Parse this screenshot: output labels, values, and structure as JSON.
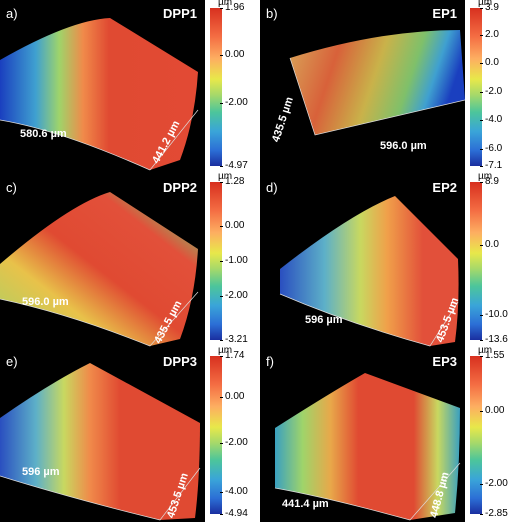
{
  "unit": "µm",
  "panels": [
    {
      "letter": "a)",
      "sample": "DPP1",
      "dim_x": "580.6 µm",
      "dim_y": "441.2 µm",
      "ticks": [
        "1.96",
        "0.00",
        "-2.00",
        "-4.97"
      ],
      "tick_pos": [
        0,
        0.3,
        0.6,
        1
      ]
    },
    {
      "letter": "b)",
      "sample": "EP1",
      "dim_x": "596.0 µm",
      "dim_y": "435.5 µm",
      "ticks": [
        "3.9",
        "2.0",
        "0.0",
        "-2.0",
        "-4.0",
        "-6.0",
        "-7.1"
      ],
      "tick_pos": [
        0,
        0.17,
        0.35,
        0.53,
        0.71,
        0.89,
        1
      ]
    },
    {
      "letter": "c)",
      "sample": "DPP2",
      "dim_x": "596.0 µm",
      "dim_y": "435.5 µm",
      "ticks": [
        "1.28",
        "0.00",
        "-1.00",
        "-2.00",
        "-3.21"
      ],
      "tick_pos": [
        0,
        0.28,
        0.5,
        0.72,
        1
      ]
    },
    {
      "letter": "d)",
      "sample": "EP2",
      "dim_x": "596 µm",
      "dim_y": "453.5 µm",
      "ticks": [
        "8.9",
        "0.0",
        "-10.0",
        "-13.6"
      ],
      "tick_pos": [
        0,
        0.4,
        0.84,
        1
      ]
    },
    {
      "letter": "e)",
      "sample": "DPP3",
      "dim_x": "596 µm",
      "dim_y": "453.5 µm",
      "ticks": [
        "1.74",
        "0.00",
        "-2.00",
        "-4.00",
        "-4.94"
      ],
      "tick_pos": [
        0,
        0.26,
        0.55,
        0.86,
        1
      ]
    },
    {
      "letter": "f)",
      "sample": "EP3",
      "dim_x": "441.4 µm",
      "dim_y": "448.8 µm",
      "ticks": [
        "1.55",
        "0.00",
        "-2.00",
        "-2.85"
      ],
      "tick_pos": [
        0,
        0.35,
        0.81,
        1
      ]
    }
  ]
}
